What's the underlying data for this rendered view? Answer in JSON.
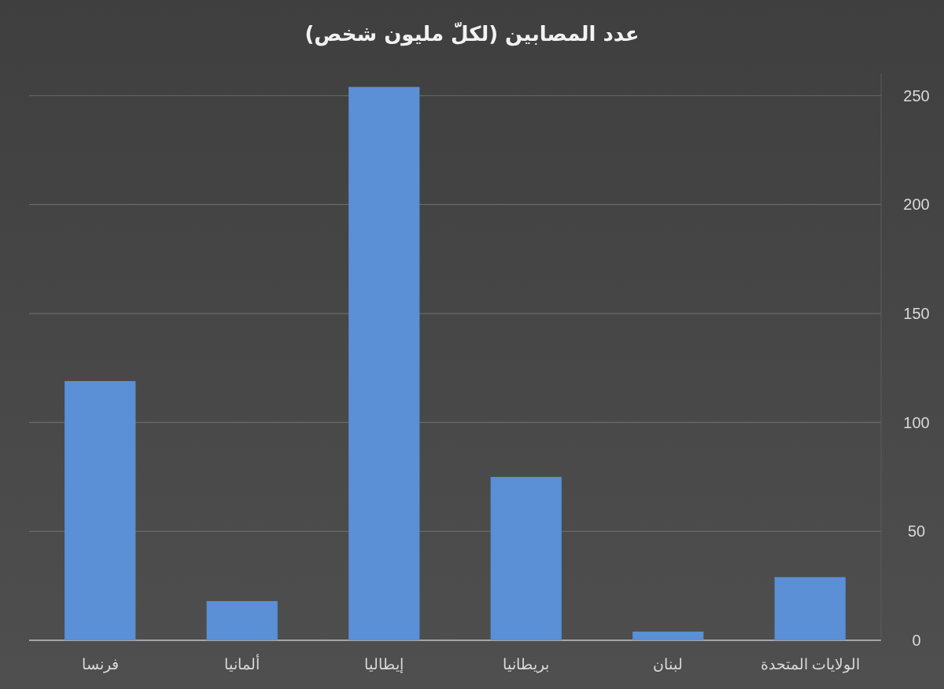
{
  "chart_data": {
    "type": "bar",
    "title": "عدد المصابين (لكلّ مليون شخص)",
    "categories": [
      "فرنسا",
      "ألمانيا",
      "إيطاليا",
      "بريطانيا",
      "لبنان",
      "الولايات المتحدة"
    ],
    "values": [
      119,
      18,
      254,
      75,
      4,
      29
    ],
    "color": "#5b8fd6",
    "ylim": [
      0,
      260
    ],
    "yticks": [
      0,
      50,
      100,
      150,
      200,
      250
    ],
    "grid": "y"
  }
}
